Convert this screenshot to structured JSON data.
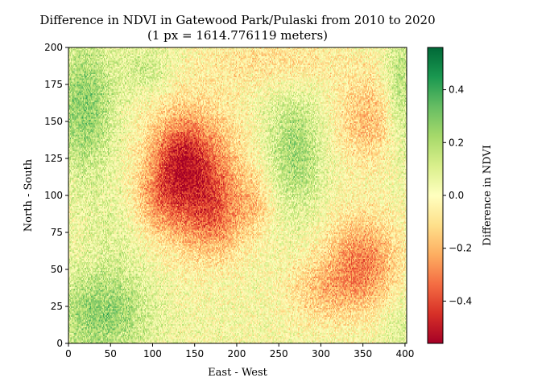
{
  "chart_data": {
    "type": "heatmap",
    "title": "Difference in NDVI in Gatewood Park/Pulaski from 2010 to 2020",
    "subtitle": "(1 px = 1614.776119 meters)",
    "xlabel": "East - West",
    "ylabel": "North - South",
    "xlim": [
      0,
      402
    ],
    "ylim": [
      0,
      200
    ],
    "xticks": [
      "0",
      "50",
      "100",
      "150",
      "200",
      "250",
      "300",
      "350",
      "400"
    ],
    "yticks": [
      "0",
      "25",
      "50",
      "75",
      "100",
      "125",
      "150",
      "175",
      "200"
    ],
    "grid": false,
    "colormap": "RdYlGn",
    "colormap_stops": [
      "#a50026",
      "#d73027",
      "#f46d43",
      "#fdae61",
      "#fee08b",
      "#ffffbf",
      "#d9ef8b",
      "#a6d96a",
      "#66bd63",
      "#1a9850",
      "#006837"
    ],
    "colorbar": {
      "label": "Difference in NDVI",
      "vmin": -0.56,
      "vmax": 0.56,
      "ticks": [
        -0.4,
        -0.2,
        0.0,
        0.2,
        0.4
      ],
      "tick_labels": [
        "−0.4",
        "−0.2",
        "0.0",
        "0.2",
        "0.4"
      ]
    },
    "regions": [
      {
        "x": 150,
        "y": 115,
        "sx": 55,
        "sy": 45,
        "value": -0.38
      },
      {
        "x": 130,
        "y": 125,
        "sx": 30,
        "sy": 25,
        "value": -0.2
      },
      {
        "x": 175,
        "y": 85,
        "sx": 40,
        "sy": 28,
        "value": -0.18
      },
      {
        "x": 105,
        "y": 95,
        "sx": 30,
        "sy": 22,
        "value": -0.15
      },
      {
        "x": 350,
        "y": 55,
        "sx": 45,
        "sy": 32,
        "value": -0.3
      },
      {
        "x": 300,
        "y": 35,
        "sx": 45,
        "sy": 22,
        "value": -0.15
      },
      {
        "x": 355,
        "y": 150,
        "sx": 40,
        "sy": 30,
        "value": -0.2
      },
      {
        "x": 250,
        "y": 190,
        "sx": 90,
        "sy": 18,
        "value": -0.12
      },
      {
        "x": 225,
        "y": 95,
        "sx": 20,
        "sy": 20,
        "value": -0.12
      },
      {
        "x": 20,
        "y": 160,
        "sx": 35,
        "sy": 45,
        "value": 0.24
      },
      {
        "x": 40,
        "y": 20,
        "sx": 55,
        "sy": 30,
        "value": 0.24
      },
      {
        "x": 60,
        "y": 80,
        "sx": 40,
        "sy": 30,
        "value": 0.06
      },
      {
        "x": 270,
        "y": 130,
        "sx": 35,
        "sy": 40,
        "value": 0.2
      },
      {
        "x": 395,
        "y": 170,
        "sx": 18,
        "sy": 45,
        "value": 0.18
      },
      {
        "x": 95,
        "y": 185,
        "sx": 30,
        "sy": 15,
        "value": 0.12
      },
      {
        "x": 395,
        "y": 10,
        "sx": 25,
        "sy": 25,
        "value": 0.08
      }
    ]
  }
}
